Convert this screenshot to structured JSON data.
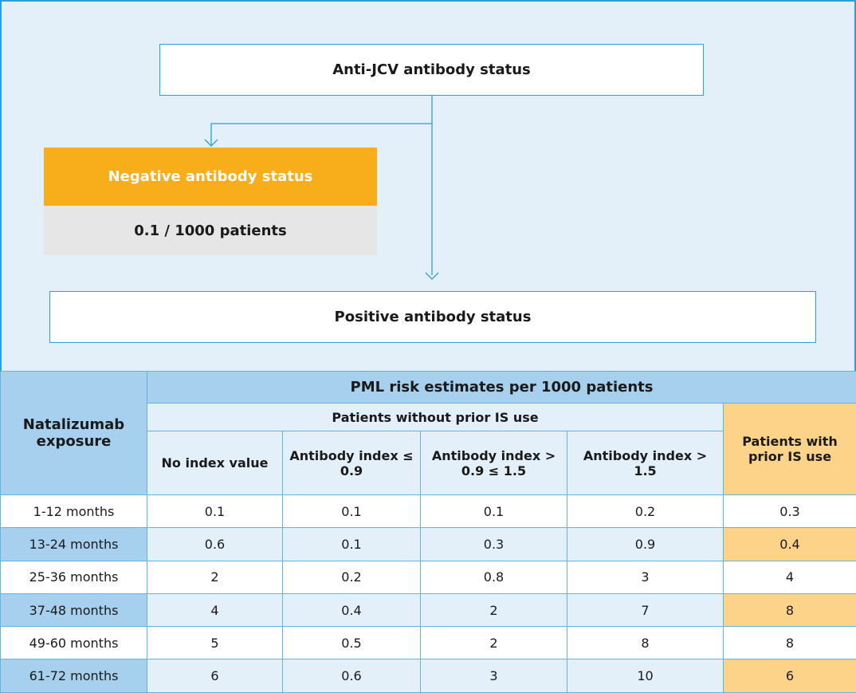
{
  "flow": {
    "root": "Anti-JCV antibody status",
    "negative": {
      "label": "Negative antibody status",
      "risk": "0.1 / 1000 patients"
    },
    "positive": "Positive antibody status"
  },
  "table": {
    "corner": "Natalizumab exposure",
    "title": "PML risk estimates per 1000 patients",
    "group": "Patients without prior IS use",
    "prior": "Patients with prior IS use",
    "columns": [
      "No index value",
      "Antibody index ≤ 0.9",
      "Antibody index > 0.9 ≤ 1.5",
      "Antibody index > 1.5"
    ],
    "rows": [
      [
        "1-12 months",
        0.1,
        0.1,
        0.1,
        0.2,
        0.3
      ],
      [
        "13-24 months",
        0.6,
        0.1,
        0.3,
        0.9,
        0.4
      ],
      [
        "25-36 months",
        2,
        0.2,
        0.8,
        3,
        4
      ],
      [
        "37-48 months",
        4,
        0.4,
        2,
        7,
        8
      ],
      [
        "49-60 months",
        5,
        0.5,
        2,
        8,
        8
      ],
      [
        "61-72 months",
        6,
        0.6,
        3,
        10,
        6
      ]
    ]
  }
}
